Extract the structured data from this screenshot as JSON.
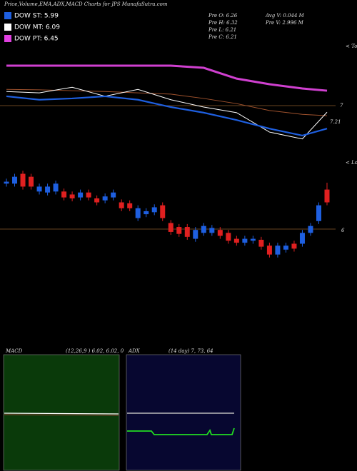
{
  "chart_data": {
    "type": "candlestick",
    "title": "Price,Volume,EMA,ADX,MACD Charts for JPS MunafaSutra.com",
    "legend": [
      {
        "name": "DOW ST: 5.99",
        "color": "#1e5fe0"
      },
      {
        "name": "DOW MT: 6.09",
        "color": "#ffffff"
      },
      {
        "name": "DOW PT: 6.45",
        "color": "#e040e0"
      }
    ],
    "stats": [
      "Pre O: 6.26",
      "Pre H: 6.32",
      "Pre L: 6.21",
      "Pre C: 6.21",
      "Avg V: 0.044 M",
      "Pre V: 2.996 M"
    ],
    "top_panel": {
      "ylim": [
        5.6,
        8.0
      ],
      "x": [
        0,
        4,
        8,
        12,
        16,
        20,
        24,
        28,
        32,
        36,
        39
      ],
      "series": [
        {
          "color": "#d040d0",
          "values": [
            7.47,
            7.47,
            7.47,
            7.47,
            7.47,
            7.47,
            7.42,
            7.17,
            7.04,
            6.94,
            6.89
          ]
        },
        {
          "color": "#a0522d",
          "values": [
            6.92,
            6.91,
            6.89,
            6.87,
            6.84,
            6.81,
            6.71,
            6.59,
            6.43,
            6.34,
            6.31
          ]
        },
        {
          "color": "#ffffff",
          "values": [
            6.87,
            6.84,
            6.97,
            6.76,
            6.92,
            6.68,
            6.51,
            6.38,
            5.93,
            5.77,
            6.39
          ]
        },
        {
          "color": "#1e5fe0",
          "values": [
            6.76,
            6.68,
            6.71,
            6.76,
            6.68,
            6.51,
            6.38,
            6.21,
            6.01,
            5.85,
            6.01
          ]
        }
      ],
      "annotations": [
        "7",
        "7.21"
      ],
      "side_label": "< Tops"
    },
    "price_panel": {
      "ylim": [
        5.6,
        6.6
      ],
      "tick_label": "6",
      "side_label": "< Lows",
      "up_color": "#1e5fe0",
      "down_color": "#e02020",
      "open": [
        6.46,
        6.46,
        6.56,
        6.53,
        6.38,
        6.37,
        6.38,
        6.38,
        6.35,
        6.32,
        6.37,
        6.31,
        6.29,
        6.32,
        6.27,
        6.26,
        6.11,
        6.15,
        6.17,
        6.24,
        6.06,
        6.02,
        6.02,
        5.9,
        5.96,
        5.96,
        5.99,
        5.96,
        5.9,
        5.86,
        5.88,
        5.89,
        5.83,
        5.74,
        5.79,
        5.85,
        5.85,
        5.96,
        6.08,
        6.4
      ],
      "close": [
        6.48,
        6.53,
        6.43,
        6.43,
        6.43,
        6.43,
        6.46,
        6.32,
        6.31,
        6.37,
        6.32,
        6.27,
        6.33,
        6.37,
        6.21,
        6.21,
        6.21,
        6.18,
        6.22,
        6.11,
        5.97,
        5.95,
        5.92,
        5.99,
        6.03,
        6.01,
        5.93,
        5.88,
        5.86,
        5.9,
        5.9,
        5.82,
        5.74,
        5.83,
        5.83,
        5.8,
        5.96,
        6.03,
        6.24,
        6.27
      ],
      "high": [
        6.51,
        6.56,
        6.59,
        6.56,
        6.46,
        6.46,
        6.49,
        6.41,
        6.38,
        6.4,
        6.4,
        6.34,
        6.36,
        6.4,
        6.3,
        6.29,
        6.24,
        6.21,
        6.25,
        6.27,
        6.09,
        6.05,
        6.05,
        6.02,
        6.06,
        6.04,
        6.02,
        5.99,
        5.93,
        5.93,
        5.93,
        5.92,
        5.86,
        5.86,
        5.86,
        5.88,
        5.99,
        6.06,
        6.27,
        6.47
      ],
      "low": [
        6.43,
        6.43,
        6.4,
        6.4,
        6.35,
        6.34,
        6.35,
        6.29,
        6.28,
        6.29,
        6.29,
        6.24,
        6.26,
        6.29,
        6.18,
        6.18,
        6.08,
        6.12,
        6.14,
        6.08,
        5.94,
        5.92,
        5.89,
        5.87,
        5.93,
        5.93,
        5.9,
        5.85,
        5.83,
        5.83,
        5.85,
        5.79,
        5.71,
        5.71,
        5.76,
        5.77,
        5.82,
        5.93,
        6.05,
        6.24
      ]
    },
    "macd": {
      "name": "MACD",
      "params": "(12,26,9 ) 6.02, 6.02, 0"
    },
    "adx": {
      "name": "ADX",
      "params": "(14 day) 7, 73, 64"
    }
  }
}
